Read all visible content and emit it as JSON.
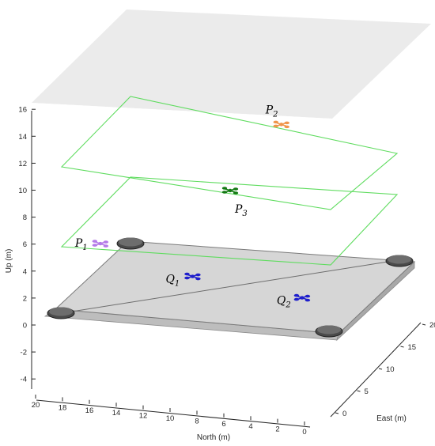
{
  "chart_data": {
    "type": "scatter3d",
    "axes": {
      "x": {
        "label": "North (m)",
        "range": [
          0,
          20
        ],
        "ticks": [
          0,
          2,
          4,
          6,
          8,
          10,
          12,
          14,
          16,
          18,
          20
        ]
      },
      "y": {
        "label": "East (m)",
        "range": [
          -2,
          22
        ],
        "ticks": [
          0,
          5,
          10,
          15,
          20
        ]
      },
      "z": {
        "label": "Up (m)",
        "range": [
          -5,
          16
        ],
        "ticks": [
          -4,
          -2,
          0,
          2,
          4,
          6,
          8,
          10,
          12,
          14,
          16
        ]
      }
    },
    "grid": false,
    "platform": {
      "label": "ground platform",
      "corners": [
        {
          "north": 20,
          "east": 0,
          "up": 0
        },
        {
          "north": 0,
          "east": 0,
          "up": 0
        },
        {
          "north": 0,
          "east": 20,
          "up": 0
        },
        {
          "north": 20,
          "east": 20,
          "up": 0
        }
      ],
      "color": "#d6d6d6"
    },
    "planes": [
      {
        "name": "upper plane",
        "up": 12,
        "color": "#5fdc5f"
      },
      {
        "name": "lower plane",
        "up": 8,
        "color": "#5fdc5f"
      }
    ],
    "points": [
      {
        "label": "P",
        "sub": "1",
        "north": 17.5,
        "east": 2.0,
        "up": 7.0,
        "color": "#b57be8"
      },
      {
        "label": "P",
        "sub": "2",
        "north": 7.5,
        "east": 15.0,
        "up": 12.0,
        "color": "#f0954a"
      },
      {
        "label": "P",
        "sub": "3",
        "north": 10.0,
        "east": 10.0,
        "up": 8.5,
        "color": "#137a13"
      },
      {
        "label": "Q",
        "sub": "1",
        "north": 12.5,
        "east": 9.0,
        "up": 2.5,
        "color": "#1f1fcc"
      },
      {
        "label": "Q",
        "sub": "2",
        "north": 4.0,
        "east": 7.0,
        "up": 1.0,
        "color": "#1f1fcc"
      }
    ]
  }
}
